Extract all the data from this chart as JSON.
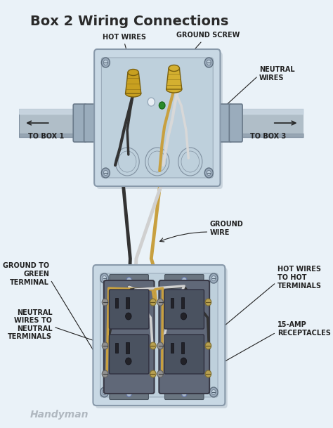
{
  "title": "Box 2 Wiring Connections",
  "title_fontsize": 14,
  "bg_color": "#eaf2f8",
  "labels": {
    "hot_wires": "HOT WIRES",
    "ground_screw": "GROUND SCREW",
    "neutral_wires": "NEUTRAL\nWIRES",
    "to_box1": "TO BOX 1",
    "to_box3": "TO BOX 3",
    "ground_wire": "GROUND\nWIRE",
    "ground_to_green": "GROUND TO\nGREEN\nTERMINAL",
    "hot_wires_to_hot": "HOT WIRES\nTO HOT\nTERMINALS",
    "neutral_to_neutral": "NEUTRAL\nWIRES TO\nNEUTRAL\nTERMINALS",
    "receptacles": "15-AMP\nRECEPTACLES",
    "handyman": "Handyman"
  },
  "colors": {
    "bg": "#eaf2f8",
    "box_fill": "#b8ccd8",
    "box_fill2": "#c8d8e4",
    "box_edge": "#8899aa",
    "pipe_fill": "#b0bec8",
    "pipe_hi": "#d0dde8",
    "pipe_lo": "#8090a0",
    "wire_black": "#333333",
    "wire_white": "#d8d8d8",
    "wire_ground": "#c8a040",
    "nut_gold": "#c8a020",
    "nut_gold2": "#d4b030",
    "green_dot": "#2a8a2a",
    "receptacle_body": "#606878",
    "receptacle_face": "#4a5260",
    "slot_dark": "#222228",
    "screw_gold": "#b8a050",
    "screw_silver": "#909090",
    "label_color": "#222222",
    "handyman_color": "#b0b8c0",
    "shadow": "#90a0b0"
  }
}
